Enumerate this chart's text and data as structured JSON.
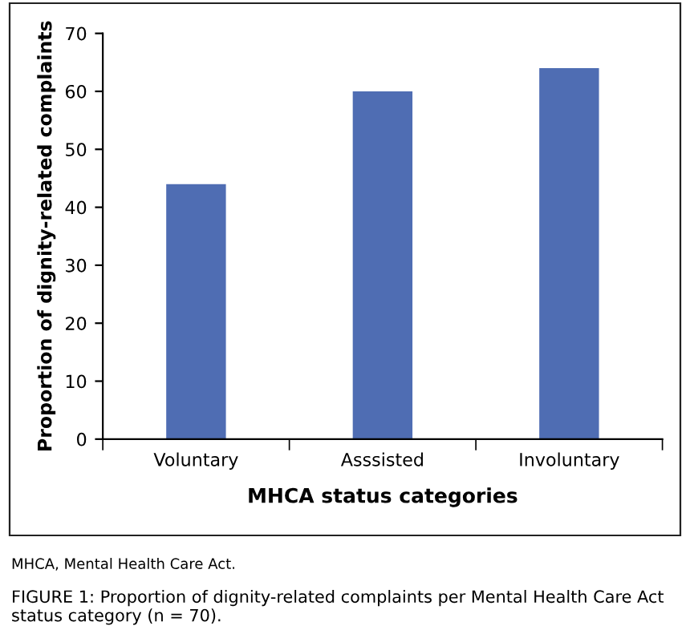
{
  "chart_data": {
    "type": "bar",
    "categories": [
      "Voluntary",
      "Asssisted",
      "Involuntary"
    ],
    "values": [
      44,
      60,
      64
    ],
    "color": "#4f6db3",
    "xlabel": "MHCA status categories",
    "ylabel": "Proportion of dignity-related complaints",
    "ylim": [
      0,
      70
    ],
    "yticks": [
      0,
      10,
      20,
      30,
      40,
      50,
      60,
      70
    ],
    "grid": false,
    "annotations": [
      "MHCA, Mental Health Care Act.",
      "FIGURE 1: Proportion of dignity-related complaints per Mental Health Care Act status category (n = 70)."
    ]
  }
}
